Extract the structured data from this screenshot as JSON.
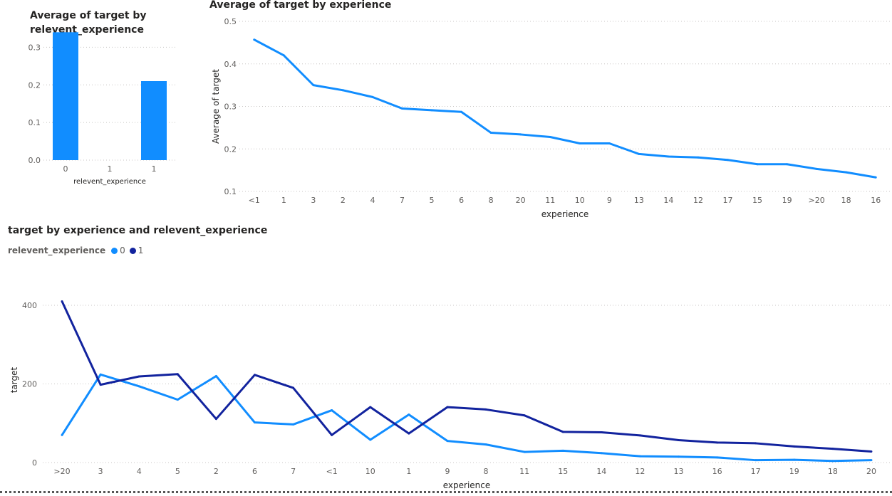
{
  "chart_data": [
    {
      "type": "bar",
      "title": "Average of target by relevent_experience",
      "xlabel": "relevent_experience",
      "ylabel": "",
      "categories": [
        "0",
        "1",
        "1"
      ],
      "values": [
        0.34,
        0,
        0.21
      ],
      "ylim": [
        0,
        0.35
      ],
      "yticks": [
        "0.0",
        "0.1",
        "0.2",
        "0.3"
      ],
      "color": "#118dff",
      "grid": true
    },
    {
      "type": "line",
      "title": "Average of target by experience",
      "xlabel": "experience",
      "ylabel": "Average of target",
      "categories": [
        "<1",
        "1",
        "3",
        "2",
        "4",
        "7",
        "5",
        "6",
        "8",
        "20",
        "11",
        "10",
        "9",
        "13",
        "14",
        "12",
        "17",
        "15",
        "19",
        ">20",
        "18",
        "16"
      ],
      "values": [
        0.457,
        0.42,
        0.35,
        0.338,
        0.322,
        0.295,
        0.291,
        0.287,
        0.238,
        0.234,
        0.228,
        0.213,
        0.213,
        0.188,
        0.182,
        0.18,
        0.174,
        0.164,
        0.164,
        0.153,
        0.145,
        0.133
      ],
      "ylim": [
        0.1,
        0.5
      ],
      "yticks": [
        "0.1",
        "0.2",
        "0.3",
        "0.4",
        "0.5"
      ],
      "color": "#118dff",
      "grid": true
    },
    {
      "type": "line",
      "title": "target by experience and relevent_experience",
      "xlabel": "experience",
      "ylabel": "target",
      "legend_title": "relevent_experience",
      "categories": [
        ">20",
        "3",
        "4",
        "5",
        "2",
        "6",
        "7",
        "<1",
        "10",
        "1",
        "9",
        "8",
        "11",
        "15",
        "14",
        "12",
        "13",
        "16",
        "17",
        "19",
        "18",
        "20"
      ],
      "series": [
        {
          "name": "0",
          "color": "#118dff",
          "values": [
            70,
            224,
            194,
            160,
            220,
            102,
            97,
            133,
            58,
            122,
            55,
            46,
            27,
            30,
            24,
            16,
            15,
            13,
            6,
            7,
            4,
            6
          ]
        },
        {
          "name": "1",
          "color": "#12239e",
          "values": [
            410,
            198,
            219,
            225,
            111,
            223,
            190,
            70,
            141,
            74,
            141,
            135,
            120,
            78,
            77,
            69,
            57,
            51,
            49,
            41,
            35,
            28
          ]
        }
      ],
      "ylim": [
        0,
        420
      ],
      "yticks": [
        "0",
        "200",
        "400"
      ],
      "legend_position": "top-left",
      "grid": true
    }
  ]
}
